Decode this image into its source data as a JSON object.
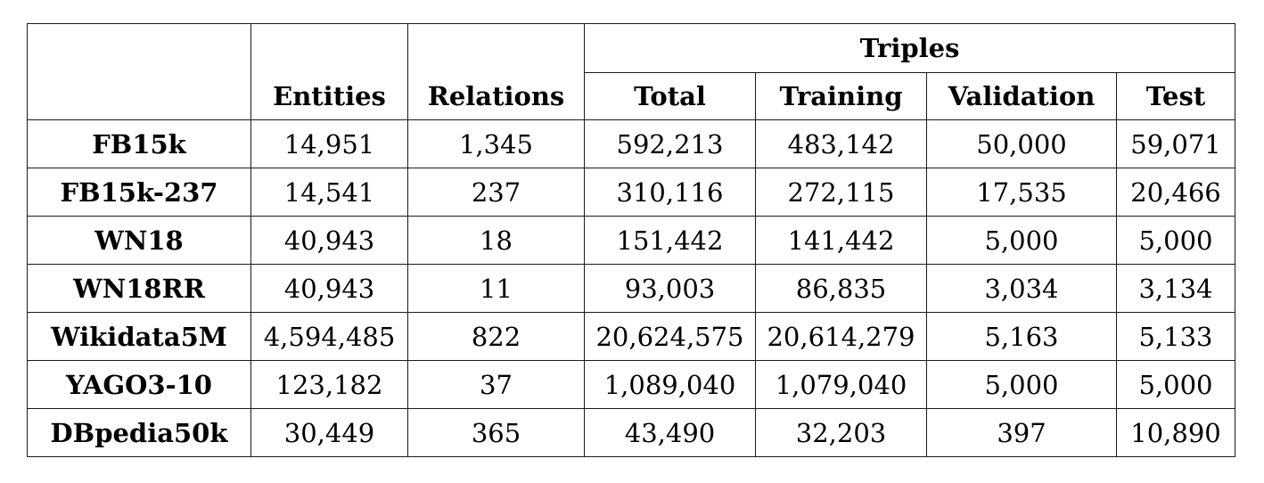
{
  "table": {
    "group_header": "Triples",
    "columns": [
      "Entities",
      "Relations",
      "Total",
      "Training",
      "Validation",
      "Test"
    ],
    "rows": [
      {
        "name": "FB15k",
        "values": [
          "14,951",
          "1,345",
          "592,213",
          "483,142",
          "50,000",
          "59,071"
        ]
      },
      {
        "name": "FB15k-237",
        "values": [
          "14,541",
          "237",
          "310,116",
          "272,115",
          "17,535",
          "20,466"
        ]
      },
      {
        "name": "WN18",
        "values": [
          "40,943",
          "18",
          "151,442",
          "141,442",
          "5,000",
          "5,000"
        ]
      },
      {
        "name": "WN18RR",
        "values": [
          "40,943",
          "11",
          "93,003",
          "86,835",
          "3,034",
          "3,134"
        ]
      },
      {
        "name": "Wikidata5M",
        "values": [
          "4,594,485",
          "822",
          "20,624,575",
          "20,614,279",
          "5,163",
          "5,133"
        ]
      },
      {
        "name": "YAGO3-10",
        "values": [
          "123,182",
          "37",
          "1,089,040",
          "1,079,040",
          "5,000",
          "5,000"
        ]
      },
      {
        "name": "DBpedia50k",
        "values": [
          "30,449",
          "365",
          "43,490",
          "32,203",
          "397",
          "10,890"
        ]
      }
    ]
  }
}
